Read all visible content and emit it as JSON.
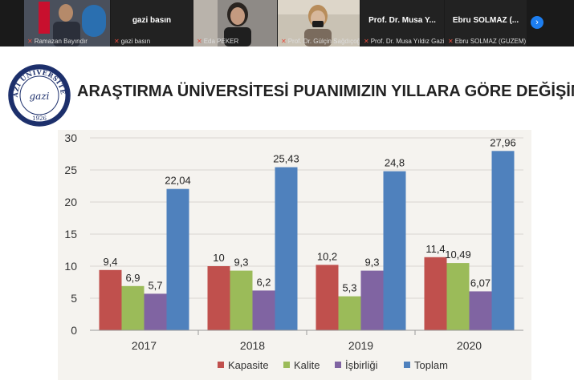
{
  "participants": [
    {
      "name": "Ramazan Bayındır",
      "center": ""
    },
    {
      "name": "gazi basın",
      "center": "gazi basın"
    },
    {
      "name": "Eda PEKER",
      "center": ""
    },
    {
      "name": "Prof. Dr. Gülçin Sağdıçoğlu C...",
      "center": ""
    },
    {
      "name": "Prof. Dr. Musa Yıldız Gazi Üni...",
      "center": "Prof. Dr. Musa Y..."
    },
    {
      "name": "Ebru SOLMAZ (GUZEM)",
      "center": "Ebru SOLMAZ (..."
    }
  ],
  "next_icon": "chevron-right-icon",
  "slide": {
    "title": "ARAŞTIRMA ÜNİVERSİTESİ PUANIMIZIN YILLARA GÖRE DEĞİŞİMİ",
    "logo": {
      "text": "GAZİ ÜNİVERSİTESİ",
      "year": "1926",
      "script": "gazi"
    }
  },
  "chart_data": {
    "type": "bar",
    "categories": [
      "2017",
      "2018",
      "2019",
      "2020"
    ],
    "ylim": [
      0,
      30
    ],
    "yticks": [
      0,
      5,
      10,
      15,
      20,
      25,
      30
    ],
    "series": [
      {
        "name": "Kapasite",
        "color": "#c0504d",
        "values": [
          9.4,
          10,
          10.2,
          11.4
        ],
        "labels": [
          "9,4",
          "10",
          "10,2",
          "11,4"
        ]
      },
      {
        "name": "Kalite",
        "color": "#9bbb59",
        "values": [
          6.9,
          9.3,
          5.3,
          10.49
        ],
        "labels": [
          "6,9",
          "9,3",
          "5,3",
          "10,49"
        ]
      },
      {
        "name": "İşbirliği",
        "color": "#8064a2",
        "values": [
          5.7,
          6.2,
          9.3,
          6.07
        ],
        "labels": [
          "5,7",
          "6,2",
          "9,3",
          "6,07"
        ]
      },
      {
        "name": "Toplam",
        "color": "#4f81bd",
        "values": [
          22.04,
          25.43,
          24.8,
          27.96
        ],
        "labels": [
          "22,04",
          "25,43",
          "24,8",
          "27,96"
        ]
      }
    ],
    "legend_position": "bottom"
  }
}
